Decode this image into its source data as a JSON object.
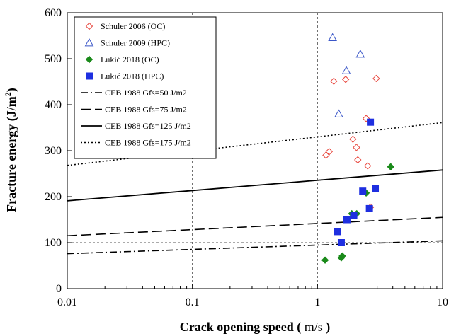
{
  "chart_data": {
    "type": "scatter",
    "xscale": "log",
    "xlim": [
      0.01,
      10
    ],
    "ylim": [
      0,
      600
    ],
    "xticks": [
      {
        "value": 0.01,
        "label": "0.01"
      },
      {
        "value": 0.1,
        "label": "0.1"
      },
      {
        "value": 1,
        "label": "1"
      },
      {
        "value": 10,
        "label": "10"
      }
    ],
    "yticks": [
      0,
      100,
      200,
      300,
      400,
      500,
      600
    ],
    "ylabel_text": "Fracture energy",
    "ylabel_unit_base": "(J/m",
    "ylabel_unit_sup": "2",
    "ylabel_unit_close": ")",
    "xlabel_text": "Crack opening speed (",
    "xlabel_unit": "m/s",
    "xlabel_close": ")",
    "grid": "dashed vertical at 0.1 and 1, dashed horizontal at y=100",
    "legend_position": "top-left",
    "series": [
      {
        "name": "Schuler 2006 (OC)",
        "marker": "diamond-open",
        "color": "#e8453c",
        "points": [
          [
            1.35,
            451
          ],
          [
            1.68,
            455
          ],
          [
            2.95,
            457
          ],
          [
            2.45,
            370
          ],
          [
            1.92,
            325
          ],
          [
            2.05,
            307
          ],
          [
            1.24,
            298
          ],
          [
            1.17,
            290
          ],
          [
            2.1,
            280
          ],
          [
            2.52,
            267
          ],
          [
            2.65,
            177
          ]
        ]
      },
      {
        "name": "Schuler 2009 (HPC)",
        "marker": "triangle-open",
        "color": "#3a56c8",
        "points": [
          [
            1.32,
            546
          ],
          [
            2.2,
            510
          ],
          [
            1.7,
            474
          ],
          [
            1.48,
            380
          ]
        ]
      },
      {
        "name": "Lukić 2018 (OC)",
        "marker": "diamond-filled",
        "color": "#1a8a1a",
        "points": [
          [
            3.85,
            265
          ],
          [
            2.45,
            208
          ],
          [
            2.06,
            163
          ],
          [
            1.88,
            163
          ],
          [
            1.15,
            62
          ],
          [
            1.55,
            67
          ],
          [
            1.58,
            71
          ]
        ]
      },
      {
        "name": "Lukić 2018 (HPC)",
        "marker": "square-filled",
        "color": "#1e2fe0",
        "points": [
          [
            2.65,
            362
          ],
          [
            2.9,
            217
          ],
          [
            2.3,
            212
          ],
          [
            2.6,
            174
          ],
          [
            1.95,
            160
          ],
          [
            1.72,
            150
          ],
          [
            1.45,
            124
          ],
          [
            1.55,
            100
          ]
        ]
      }
    ],
    "lines": [
      {
        "name": "CEB 1988 Gfs=50 J/m2",
        "style": "dash-dot",
        "color": "#000000",
        "y_start": 76,
        "y_end": 104
      },
      {
        "name": "CEB 1988 Gfs=75 J/m2",
        "style": "dashed",
        "color": "#000000",
        "y_start": 115,
        "y_end": 155
      },
      {
        "name": "CEB 1988 Gfs=125 J/m2",
        "style": "solid",
        "color": "#000000",
        "y_start": 191,
        "y_end": 258
      },
      {
        "name": "CEB 1988 Gfs=175 J/m2",
        "style": "dotted",
        "color": "#000000",
        "y_start": 268,
        "y_end": 361
      }
    ]
  }
}
